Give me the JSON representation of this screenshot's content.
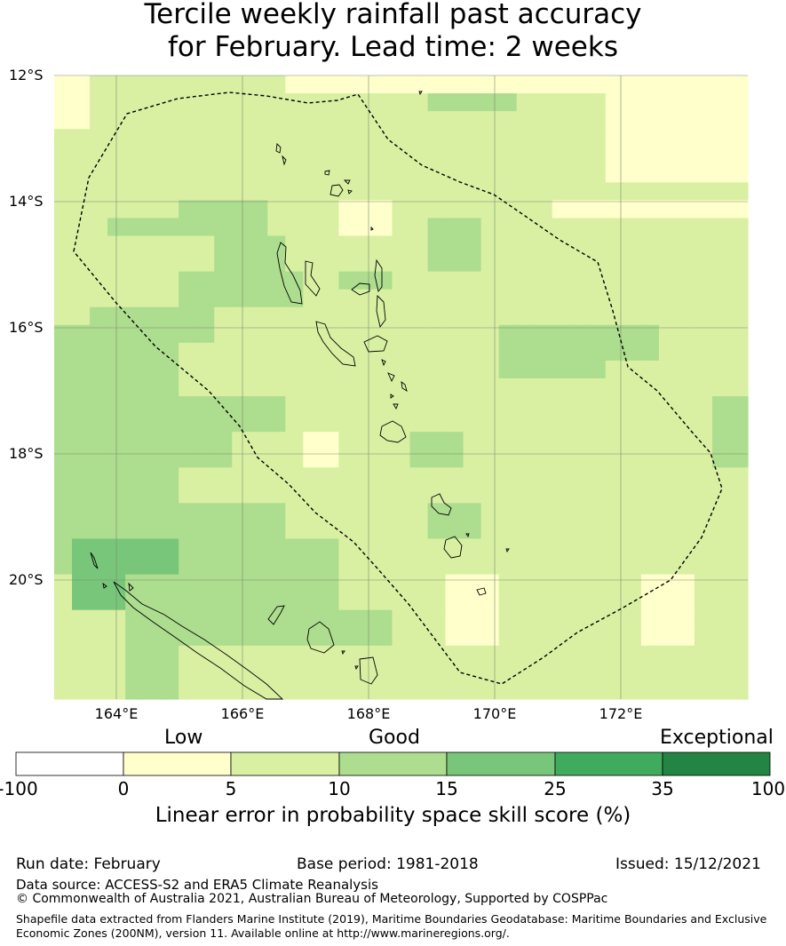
{
  "title": {
    "line1": "Tercile weekly rainfall past accuracy",
    "line2": "for February. Lead time: 2 weeks"
  },
  "map": {
    "lat_labels": [
      "12°S",
      "14°S",
      "16°S",
      "18°S",
      "20°S"
    ],
    "lon_labels": [
      "164°E",
      "166°E",
      "168°E",
      "170°E",
      "172°E"
    ],
    "category_colors": [
      "#ffffff",
      "#ffffcc",
      "#d9f0a3",
      "#addd8e",
      "#78c679",
      "#41ab5d",
      "#238443"
    ],
    "grid_categories": [
      [
        1,
        1,
        2,
        2,
        2,
        2,
        2,
        2,
        2,
        2,
        2,
        2,
        2,
        1,
        1,
        1,
        1,
        1,
        1,
        1,
        1,
        1,
        1,
        1,
        1,
        1,
        1,
        1,
        1,
        1,
        1,
        1,
        1,
        1,
        1,
        1,
        1,
        1,
        1
      ],
      [
        1,
        1,
        2,
        2,
        2,
        2,
        2,
        2,
        2,
        2,
        2,
        2,
        2,
        2,
        2,
        2,
        2,
        2,
        2,
        2,
        2,
        3,
        3,
        3,
        3,
        3,
        2,
        2,
        2,
        2,
        2,
        1,
        1,
        1,
        1,
        1,
        1,
        1,
        1
      ],
      [
        1,
        1,
        2,
        2,
        2,
        2,
        2,
        2,
        2,
        2,
        2,
        2,
        2,
        2,
        2,
        2,
        2,
        2,
        2,
        2,
        2,
        2,
        2,
        2,
        2,
        2,
        2,
        2,
        2,
        2,
        2,
        1,
        1,
        1,
        1,
        1,
        1,
        1,
        1
      ],
      [
        2,
        2,
        2,
        2,
        2,
        2,
        2,
        2,
        2,
        2,
        2,
        2,
        2,
        2,
        2,
        2,
        2,
        2,
        2,
        2,
        2,
        2,
        2,
        2,
        2,
        2,
        2,
        2,
        2,
        2,
        2,
        1,
        1,
        1,
        1,
        1,
        1,
        1,
        1
      ],
      [
        2,
        2,
        2,
        2,
        2,
        2,
        2,
        2,
        2,
        2,
        2,
        2,
        2,
        2,
        2,
        2,
        2,
        2,
        2,
        2,
        2,
        2,
        2,
        2,
        2,
        2,
        2,
        2,
        2,
        2,
        2,
        1,
        1,
        1,
        1,
        1,
        1,
        1,
        1
      ],
      [
        2,
        2,
        2,
        2,
        2,
        2,
        2,
        2,
        2,
        2,
        2,
        2,
        2,
        2,
        2,
        2,
        2,
        2,
        2,
        2,
        2,
        2,
        2,
        2,
        2,
        2,
        2,
        2,
        2,
        2,
        2,
        1,
        1,
        1,
        1,
        1,
        1,
        1,
        1
      ],
      [
        2,
        2,
        2,
        2,
        2,
        2,
        2,
        2,
        2,
        2,
        2,
        2,
        2,
        2,
        2,
        2,
        2,
        2,
        2,
        2,
        2,
        2,
        2,
        2,
        2,
        2,
        2,
        2,
        2,
        2,
        2,
        2,
        2,
        2,
        2,
        2,
        2,
        2,
        2
      ],
      [
        2,
        2,
        2,
        2,
        2,
        2,
        2,
        3,
        3,
        3,
        3,
        3,
        2,
        2,
        2,
        2,
        1,
        1,
        1,
        2,
        2,
        2,
        2,
        2,
        2,
        2,
        2,
        2,
        1,
        1,
        1,
        1,
        1,
        1,
        1,
        1,
        1,
        1,
        1
      ],
      [
        2,
        2,
        2,
        3,
        3,
        3,
        3,
        3,
        3,
        3,
        3,
        3,
        2,
        2,
        2,
        2,
        1,
        1,
        1,
        2,
        2,
        3,
        3,
        3,
        2,
        2,
        2,
        2,
        2,
        2,
        2,
        2,
        2,
        2,
        2,
        2,
        2,
        2,
        2
      ],
      [
        2,
        2,
        2,
        2,
        2,
        2,
        2,
        2,
        2,
        3,
        3,
        3,
        3,
        2,
        2,
        2,
        2,
        2,
        2,
        2,
        2,
        3,
        3,
        3,
        2,
        2,
        2,
        2,
        2,
        2,
        2,
        2,
        2,
        2,
        2,
        2,
        2,
        2,
        2
      ],
      [
        2,
        2,
        2,
        2,
        2,
        2,
        2,
        2,
        2,
        3,
        3,
        3,
        3,
        2,
        2,
        2,
        2,
        2,
        2,
        2,
        2,
        3,
        3,
        3,
        2,
        2,
        2,
        2,
        2,
        2,
        2,
        2,
        2,
        2,
        2,
        2,
        2,
        2,
        2
      ],
      [
        2,
        2,
        2,
        2,
        2,
        2,
        2,
        3,
        3,
        3,
        3,
        3,
        3,
        3,
        2,
        2,
        3,
        3,
        3,
        2,
        2,
        2,
        2,
        2,
        2,
        2,
        2,
        2,
        2,
        2,
        2,
        2,
        2,
        2,
        2,
        2,
        2,
        2,
        2
      ],
      [
        2,
        2,
        2,
        2,
        2,
        2,
        2,
        3,
        3,
        3,
        3,
        3,
        3,
        3,
        2,
        2,
        2,
        2,
        2,
        2,
        2,
        2,
        2,
        2,
        2,
        2,
        2,
        2,
        2,
        2,
        2,
        2,
        2,
        2,
        2,
        2,
        2,
        2,
        2
      ],
      [
        2,
        2,
        3,
        3,
        3,
        3,
        3,
        3,
        3,
        2,
        2,
        2,
        2,
        2,
        2,
        2,
        2,
        2,
        2,
        2,
        2,
        2,
        2,
        2,
        2,
        2,
        2,
        2,
        2,
        2,
        2,
        2,
        2,
        2,
        2,
        2,
        2,
        2,
        2
      ],
      [
        3,
        3,
        3,
        3,
        3,
        3,
        3,
        3,
        3,
        2,
        2,
        2,
        2,
        2,
        2,
        2,
        2,
        2,
        2,
        2,
        2,
        2,
        2,
        2,
        2,
        3,
        3,
        3,
        3,
        3,
        3,
        3,
        3,
        3,
        2,
        2,
        2,
        2,
        2
      ],
      [
        3,
        3,
        3,
        3,
        3,
        3,
        3,
        2,
        2,
        2,
        2,
        2,
        2,
        2,
        2,
        2,
        2,
        2,
        2,
        2,
        2,
        2,
        2,
        2,
        2,
        3,
        3,
        3,
        3,
        3,
        3,
        3,
        3,
        3,
        2,
        2,
        2,
        2,
        2
      ],
      [
        3,
        3,
        3,
        3,
        3,
        3,
        3,
        2,
        2,
        2,
        2,
        2,
        2,
        2,
        2,
        2,
        2,
        2,
        2,
        2,
        2,
        2,
        2,
        2,
        2,
        3,
        3,
        3,
        3,
        3,
        3,
        2,
        2,
        2,
        2,
        2,
        2,
        2,
        2
      ],
      [
        3,
        3,
        3,
        3,
        3,
        3,
        3,
        2,
        2,
        2,
        2,
        2,
        2,
        2,
        2,
        2,
        2,
        2,
        2,
        2,
        2,
        2,
        2,
        2,
        2,
        2,
        2,
        2,
        2,
        2,
        2,
        2,
        2,
        2,
        2,
        2,
        2,
        2,
        2
      ],
      [
        3,
        3,
        3,
        3,
        3,
        3,
        3,
        3,
        3,
        3,
        3,
        3,
        3,
        2,
        2,
        2,
        2,
        2,
        2,
        2,
        2,
        2,
        2,
        2,
        2,
        2,
        2,
        2,
        2,
        2,
        2,
        2,
        2,
        2,
        2,
        2,
        2,
        3,
        3
      ],
      [
        3,
        3,
        3,
        3,
        3,
        3,
        3,
        3,
        3,
        3,
        3,
        3,
        3,
        2,
        2,
        2,
        2,
        2,
        2,
        2,
        2,
        2,
        2,
        2,
        2,
        2,
        2,
        2,
        2,
        2,
        2,
        2,
        2,
        2,
        2,
        2,
        2,
        3,
        3
      ],
      [
        3,
        3,
        3,
        3,
        3,
        3,
        3,
        3,
        3,
        3,
        2,
        2,
        2,
        2,
        1,
        1,
        2,
        2,
        2,
        2,
        3,
        3,
        3,
        2,
        2,
        2,
        2,
        2,
        2,
        2,
        2,
        2,
        2,
        2,
        2,
        2,
        2,
        3,
        3
      ],
      [
        3,
        3,
        3,
        3,
        3,
        3,
        3,
        3,
        3,
        3,
        2,
        2,
        2,
        2,
        1,
        1,
        2,
        2,
        2,
        2,
        3,
        3,
        3,
        2,
        2,
        2,
        2,
        2,
        2,
        2,
        2,
        2,
        2,
        2,
        2,
        2,
        2,
        3,
        3
      ],
      [
        3,
        3,
        3,
        3,
        3,
        3,
        3,
        2,
        2,
        2,
        2,
        2,
        2,
        2,
        2,
        2,
        2,
        2,
        2,
        2,
        2,
        2,
        2,
        2,
        2,
        2,
        2,
        2,
        2,
        2,
        2,
        2,
        2,
        2,
        2,
        2,
        2,
        2,
        2
      ],
      [
        3,
        3,
        3,
        3,
        3,
        3,
        3,
        2,
        2,
        2,
        2,
        2,
        2,
        2,
        2,
        2,
        2,
        2,
        2,
        2,
        2,
        2,
        2,
        2,
        2,
        2,
        2,
        2,
        2,
        2,
        2,
        2,
        2,
        2,
        2,
        2,
        2,
        2,
        2
      ],
      [
        3,
        3,
        3,
        3,
        3,
        3,
        3,
        3,
        3,
        3,
        3,
        3,
        3,
        2,
        2,
        2,
        2,
        2,
        2,
        2,
        2,
        3,
        3,
        3,
        2,
        2,
        2,
        2,
        2,
        2,
        2,
        2,
        2,
        2,
        2,
        2,
        2,
        2,
        2
      ],
      [
        3,
        3,
        3,
        3,
        3,
        3,
        3,
        3,
        3,
        3,
        3,
        3,
        3,
        2,
        2,
        2,
        2,
        2,
        2,
        2,
        2,
        3,
        3,
        3,
        2,
        2,
        2,
        2,
        2,
        2,
        2,
        2,
        2,
        2,
        2,
        2,
        2,
        2,
        2
      ],
      [
        3,
        4,
        4,
        4,
        4,
        4,
        4,
        3,
        3,
        3,
        3,
        3,
        3,
        3,
        3,
        3,
        2,
        2,
        2,
        2,
        2,
        2,
        2,
        2,
        2,
        2,
        2,
        2,
        2,
        2,
        2,
        2,
        2,
        2,
        2,
        2,
        2,
        2,
        2
      ],
      [
        3,
        4,
        4,
        4,
        4,
        4,
        4,
        3,
        3,
        3,
        3,
        3,
        3,
        3,
        3,
        3,
        2,
        2,
        2,
        2,
        2,
        2,
        2,
        2,
        2,
        2,
        2,
        2,
        2,
        2,
        2,
        2,
        2,
        2,
        2,
        2,
        2,
        2,
        2
      ],
      [
        2,
        4,
        4,
        4,
        3,
        3,
        3,
        3,
        3,
        3,
        3,
        3,
        3,
        3,
        3,
        3,
        2,
        2,
        2,
        2,
        2,
        2,
        1,
        1,
        1,
        2,
        2,
        2,
        2,
        2,
        2,
        2,
        2,
        1,
        1,
        1,
        2,
        2,
        2
      ],
      [
        2,
        4,
        4,
        4,
        3,
        3,
        3,
        3,
        3,
        3,
        3,
        3,
        3,
        3,
        3,
        3,
        2,
        2,
        2,
        2,
        2,
        2,
        1,
        1,
        1,
        2,
        2,
        2,
        2,
        2,
        2,
        2,
        2,
        1,
        1,
        1,
        2,
        2,
        2
      ],
      [
        2,
        2,
        2,
        2,
        3,
        3,
        3,
        3,
        3,
        3,
        3,
        3,
        3,
        3,
        3,
        3,
        3,
        3,
        3,
        2,
        2,
        2,
        1,
        1,
        1,
        2,
        2,
        2,
        2,
        2,
        2,
        2,
        2,
        1,
        1,
        1,
        2,
        2,
        2
      ],
      [
        2,
        2,
        2,
        2,
        3,
        3,
        3,
        3,
        3,
        3,
        3,
        3,
        3,
        3,
        3,
        3,
        3,
        3,
        3,
        2,
        2,
        2,
        1,
        1,
        1,
        2,
        2,
        2,
        2,
        2,
        2,
        2,
        2,
        1,
        1,
        1,
        2,
        2,
        2
      ],
      [
        2,
        2,
        2,
        2,
        3,
        3,
        3,
        2,
        2,
        2,
        2,
        2,
        2,
        2,
        2,
        2,
        2,
        2,
        2,
        2,
        2,
        2,
        2,
        2,
        2,
        2,
        2,
        2,
        2,
        2,
        2,
        2,
        2,
        2,
        2,
        2,
        2,
        2,
        2
      ],
      [
        2,
        2,
        2,
        2,
        3,
        3,
        3,
        2,
        2,
        2,
        2,
        2,
        2,
        2,
        2,
        2,
        2,
        2,
        2,
        2,
        2,
        2,
        2,
        2,
        2,
        2,
        2,
        2,
        2,
        2,
        2,
        2,
        2,
        2,
        2,
        2,
        2,
        2,
        2
      ],
      [
        2,
        2,
        2,
        2,
        3,
        3,
        3,
        2,
        2,
        2,
        2,
        2,
        2,
        2,
        2,
        2,
        2,
        2,
        2,
        2,
        2,
        2,
        2,
        2,
        2,
        2,
        2,
        2,
        2,
        2,
        2,
        2,
        2,
        2,
        2,
        2,
        2,
        2,
        2
      ]
    ]
  },
  "legend": {
    "categories": [
      "Low",
      "Good",
      "Exceptional"
    ],
    "ticks": [
      "-100",
      "0",
      "5",
      "10",
      "15",
      "25",
      "35",
      "100"
    ],
    "colors": [
      "#ffffff",
      "#ffffcc",
      "#d9f0a3",
      "#addd8e",
      "#78c679",
      "#41ab5d",
      "#238443"
    ],
    "label": "Linear error in probability space skill score (%)"
  },
  "footer": {
    "run_date": "Run date: February",
    "base_period": "Base period: 1981-2018",
    "issued": "Issued: 15/12/2021",
    "data_source": "Data source: ACCESS-S2 and ERA5 Climate Reanalysis",
    "copyright": "© Commonwealth of Australia 2021, Australian Bureau of Meteorology, Supported by COSPPac",
    "shapefile_line1": "Shapefile data extracted from Flanders Marine Institute (2019), Maritime Boundaries Geodatabase: Maritime Boundaries and Exclusive",
    "shapefile_line2": "Economic Zones (200NM), version 11. Available online at http://www.marineregions.org/."
  }
}
